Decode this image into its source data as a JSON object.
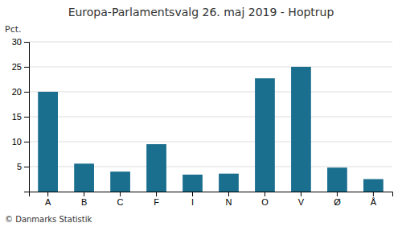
{
  "chart_data": {
    "type": "bar",
    "title": "Europa-Parlamentsvalg 26. maj 2019 - Hoptrup",
    "ylabel": "Pct.",
    "annotations": [
      "© Danmarks Statistik"
    ],
    "categories": [
      "A",
      "B",
      "C",
      "F",
      "I",
      "N",
      "O",
      "V",
      "Ø",
      "Å"
    ],
    "values": [
      20.0,
      5.6,
      4.0,
      9.5,
      3.4,
      3.6,
      22.7,
      25.0,
      4.8,
      2.5
    ],
    "color": "#1a6e8e",
    "ylim": [
      0,
      30
    ],
    "yticks": [
      5,
      10,
      15,
      20,
      25,
      30
    ],
    "grid": true
  }
}
